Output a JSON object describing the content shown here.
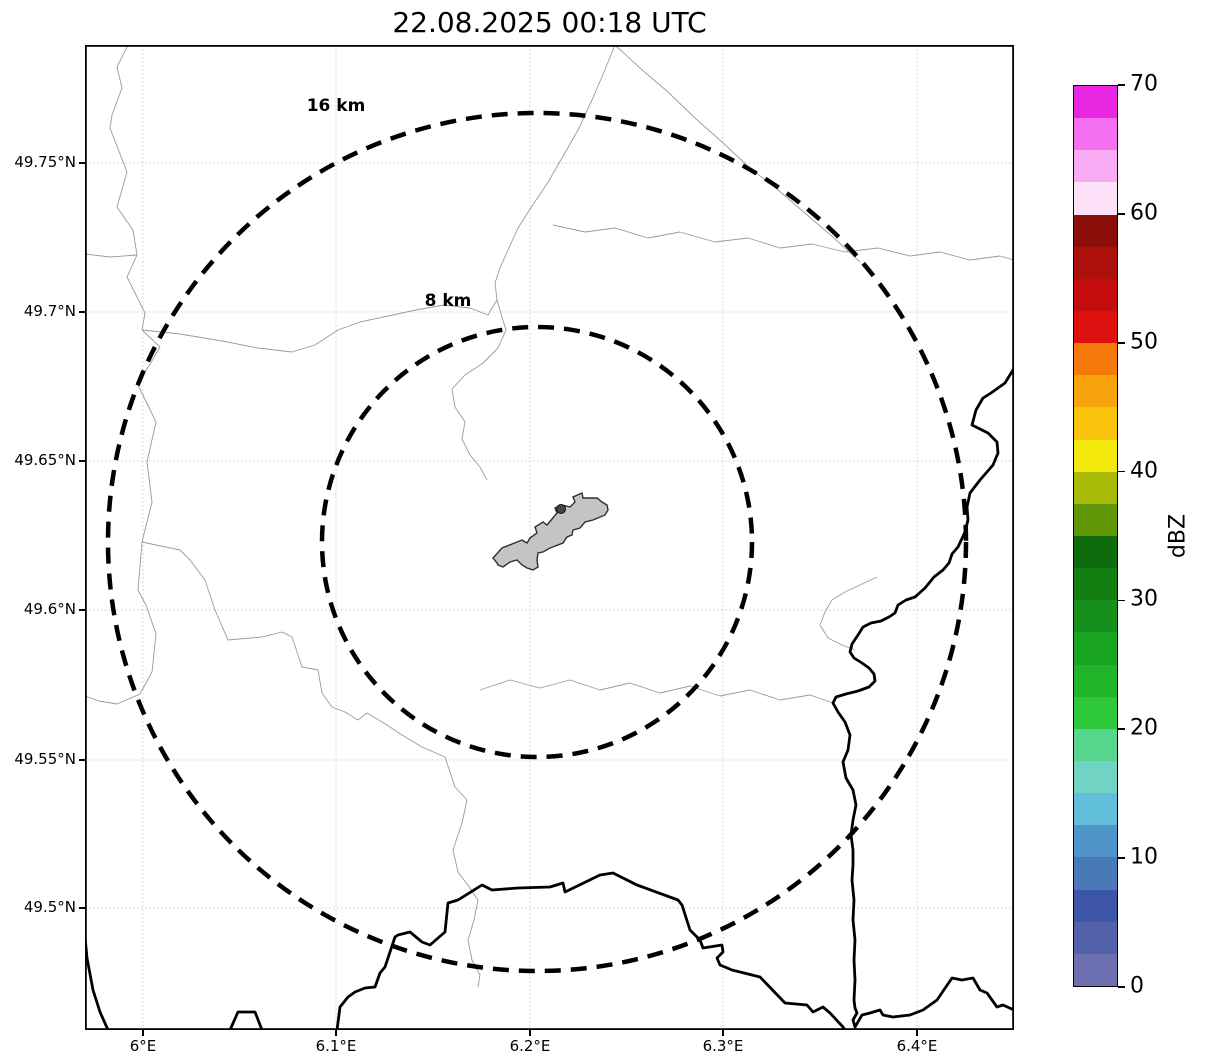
{
  "title": "22.08.2025 00:18 UTC",
  "map": {
    "x_tick_labels": [
      "6°E",
      "6.1°E",
      "6.2°E",
      "6.3°E",
      "6.4°E"
    ],
    "y_tick_labels": [
      "49.75°N",
      "49.7°N",
      "49.65°N",
      "49.6°N",
      "49.55°N",
      "49.5°N"
    ],
    "range_rings": [
      {
        "label": "16 km"
      },
      {
        "label": "8 km"
      }
    ],
    "features": {
      "airport_area_fill": "#c4c4c4",
      "border_line_color": "#000000",
      "admin_line_color": "#9a9a9a"
    }
  },
  "colorbar": {
    "label": "dBZ",
    "tick_labels": [
      "0",
      "10",
      "20",
      "30",
      "40",
      "50",
      "60",
      "70"
    ],
    "min": 0,
    "max": 70,
    "bin_size": 2.5,
    "colors_low_to_high": [
      "#6c70b2",
      "#5361aa",
      "#3c55a5",
      "#4a79b7",
      "#5095c9",
      "#60bed9",
      "#70d3c3",
      "#55d68c",
      "#2fc83b",
      "#22b52c",
      "#18a321",
      "#15911b",
      "#127e12",
      "#0f6c0d",
      "#5f9708",
      "#a6ba06",
      "#f3e80b",
      "#f9c20b",
      "#f8a30c",
      "#f5790b",
      "#df1010",
      "#c60d0d",
      "#ad0f0c",
      "#8a0f0b",
      "#fce1f8",
      "#f7abf3",
      "#f46ff0",
      "#e927e2"
    ]
  }
}
